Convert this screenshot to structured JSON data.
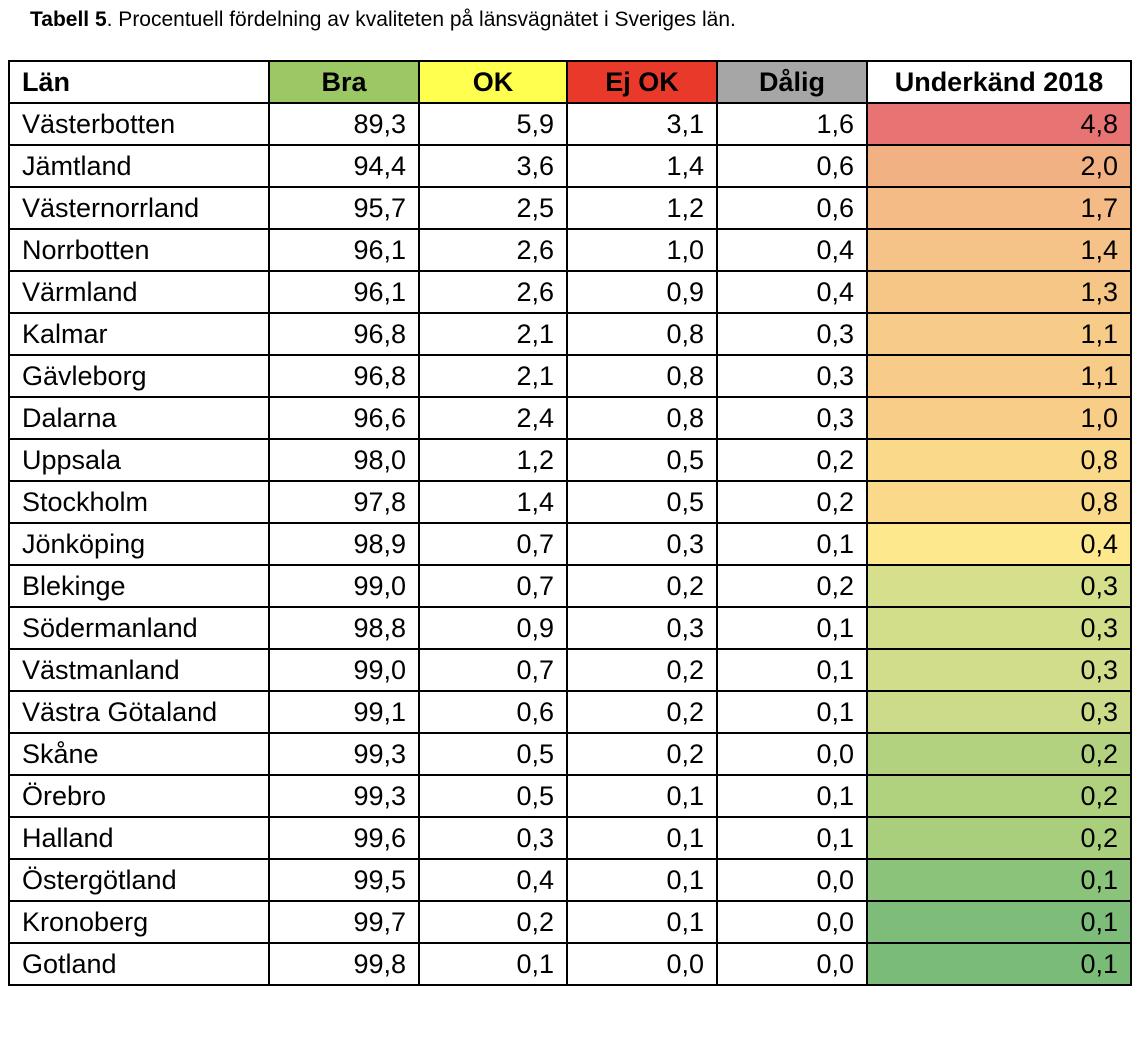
{
  "title": {
    "label": "Tabell 5",
    "text": ". Procentuell fördelning av kvaliteten på länsvägnätet i Sveriges län."
  },
  "table": {
    "header": [
      "Län",
      "Bra",
      "OK",
      "Ej OK",
      "Dålig",
      "Underkänd 2018"
    ],
    "rows": [
      [
        "Västerbotten",
        "89,3",
        "5,9",
        "3,1",
        "1,6",
        "4,8"
      ],
      [
        "Jämtland",
        "94,4",
        "3,6",
        "1,4",
        "0,6",
        "2,0"
      ],
      [
        "Västernorrland",
        "95,7",
        "2,5",
        "1,2",
        "0,6",
        "1,7"
      ],
      [
        "Norrbotten",
        "96,1",
        "2,6",
        "1,0",
        "0,4",
        "1,4"
      ],
      [
        "Värmland",
        "96,1",
        "2,6",
        "0,9",
        "0,4",
        "1,3"
      ],
      [
        "Kalmar",
        "96,8",
        "2,1",
        "0,8",
        "0,3",
        "1,1"
      ],
      [
        "Gävleborg",
        "96,8",
        "2,1",
        "0,8",
        "0,3",
        "1,1"
      ],
      [
        "Dalarna",
        "96,6",
        "2,4",
        "0,8",
        "0,3",
        "1,0"
      ],
      [
        "Uppsala",
        "98,0",
        "1,2",
        "0,5",
        "0,2",
        "0,8"
      ],
      [
        "Stockholm",
        "97,8",
        "1,4",
        "0,5",
        "0,2",
        "0,8"
      ],
      [
        "Jönköping",
        "98,9",
        "0,7",
        "0,3",
        "0,1",
        "0,4"
      ],
      [
        "Blekinge",
        "99,0",
        "0,7",
        "0,2",
        "0,2",
        "0,3"
      ],
      [
        "Södermanland",
        "98,8",
        "0,9",
        "0,3",
        "0,1",
        "0,3"
      ],
      [
        "Västmanland",
        "99,0",
        "0,7",
        "0,2",
        "0,1",
        "0,3"
      ],
      [
        "Västra Götaland",
        "99,1",
        "0,6",
        "0,2",
        "0,1",
        "0,3"
      ],
      [
        "Skåne",
        "99,3",
        "0,5",
        "0,2",
        "0,0",
        "0,2"
      ],
      [
        "Örebro",
        "99,3",
        "0,5",
        "0,1",
        "0,1",
        "0,2"
      ],
      [
        "Halland",
        "99,6",
        "0,3",
        "0,1",
        "0,1",
        "0,2"
      ],
      [
        "Östergötland",
        "99,5",
        "0,4",
        "0,1",
        "0,0",
        "0,1"
      ],
      [
        "Kronoberg",
        "99,7",
        "0,2",
        "0,1",
        "0,0",
        "0,1"
      ],
      [
        "Gotland",
        "99,8",
        "0,1",
        "0,0",
        "0,0",
        "0,1"
      ]
    ]
  }
}
